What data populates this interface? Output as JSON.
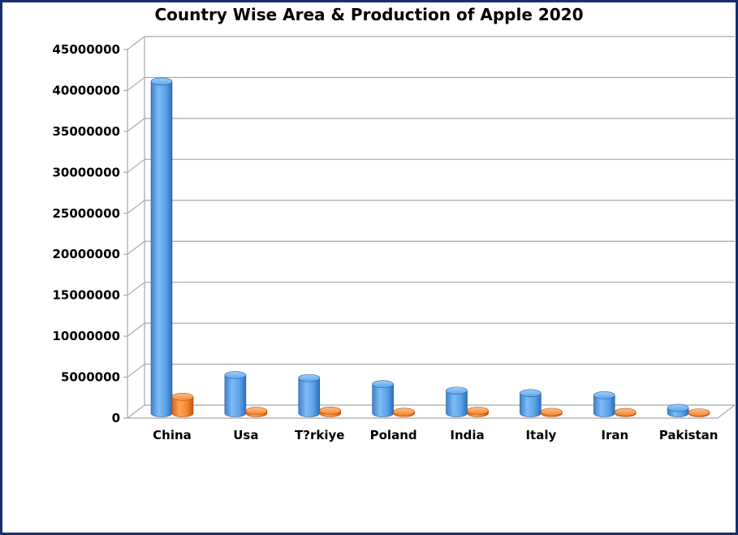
{
  "chart_data": {
    "type": "bar",
    "title": "Country Wise Area & Production of Apple 2020",
    "xlabel": "",
    "ylabel": "",
    "categories": [
      "China",
      "Usa",
      "T?rkiye",
      "Poland",
      "India",
      "Italy",
      "Iran",
      "Pakistan"
    ],
    "series": [
      {
        "values": [
          40500000,
          4650000,
          4300000,
          3550000,
          2750000,
          2450000,
          2200000,
          650000
        ]
      },
      {
        "values": [
          2000000,
          290000,
          320000,
          180000,
          310000,
          160000,
          140000,
          100000
        ]
      }
    ],
    "ylim": [
      0,
      45000000
    ],
    "yticks": [
      "0",
      "5000000",
      "10000000",
      "15000000",
      "20000000",
      "25000000",
      "30000000",
      "35000000",
      "40000000",
      "45000000"
    ],
    "grid": true,
    "legend": "none",
    "colors": {
      "series0": "#4f9be6",
      "series1": "#f5822a",
      "frame": "#17306b"
    }
  }
}
